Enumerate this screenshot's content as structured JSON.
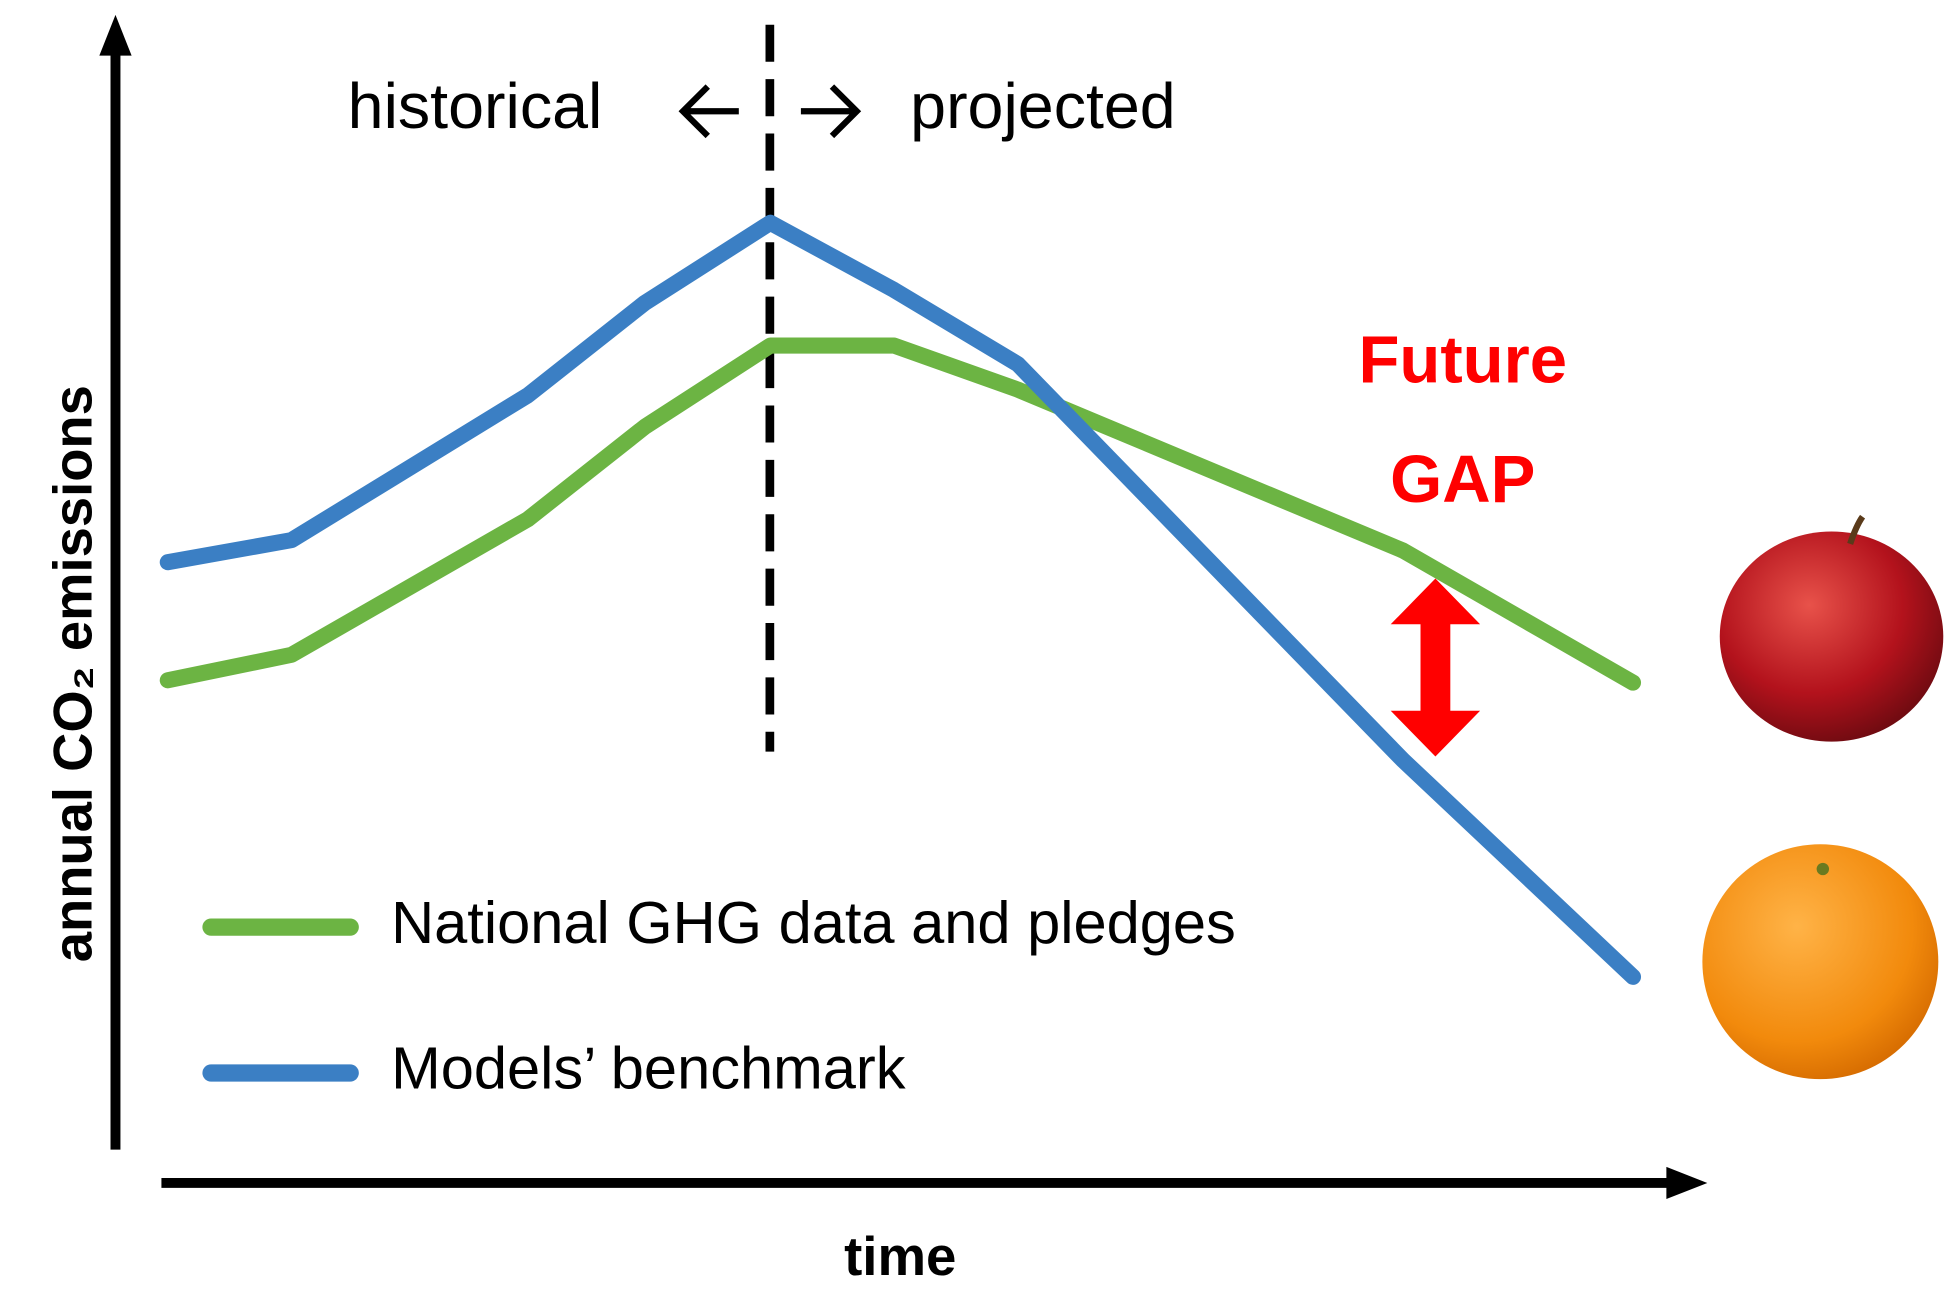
{
  "chart_data": {
    "type": "line",
    "y_label": "annual CO₂ emissions",
    "x_label": "time",
    "annotations": {
      "left": "historical",
      "right": "projected",
      "gap": [
        "Future",
        "GAP"
      ]
    },
    "x": [
      3.3,
      11.1,
      26,
      33.4,
      41.3,
      49.1,
      56.9,
      81.2,
      95.7
    ],
    "series": [
      {
        "name": "National GHG data and pledges",
        "color": "#6cb443",
        "values": [
          43.4,
          45.6,
          57.3,
          65.3,
          72.3,
          72.3,
          68.5,
          54.6,
          43.2
        ]
      },
      {
        "name": "Models’ benchmark",
        "color": "#3b7fc4",
        "values": [
          53.6,
          55.5,
          68,
          76,
          82.9,
          77.1,
          70.7,
          36.5,
          17.8
        ]
      }
    ],
    "xlim": [
      0,
      100
    ],
    "ylim": [
      0,
      100
    ]
  }
}
